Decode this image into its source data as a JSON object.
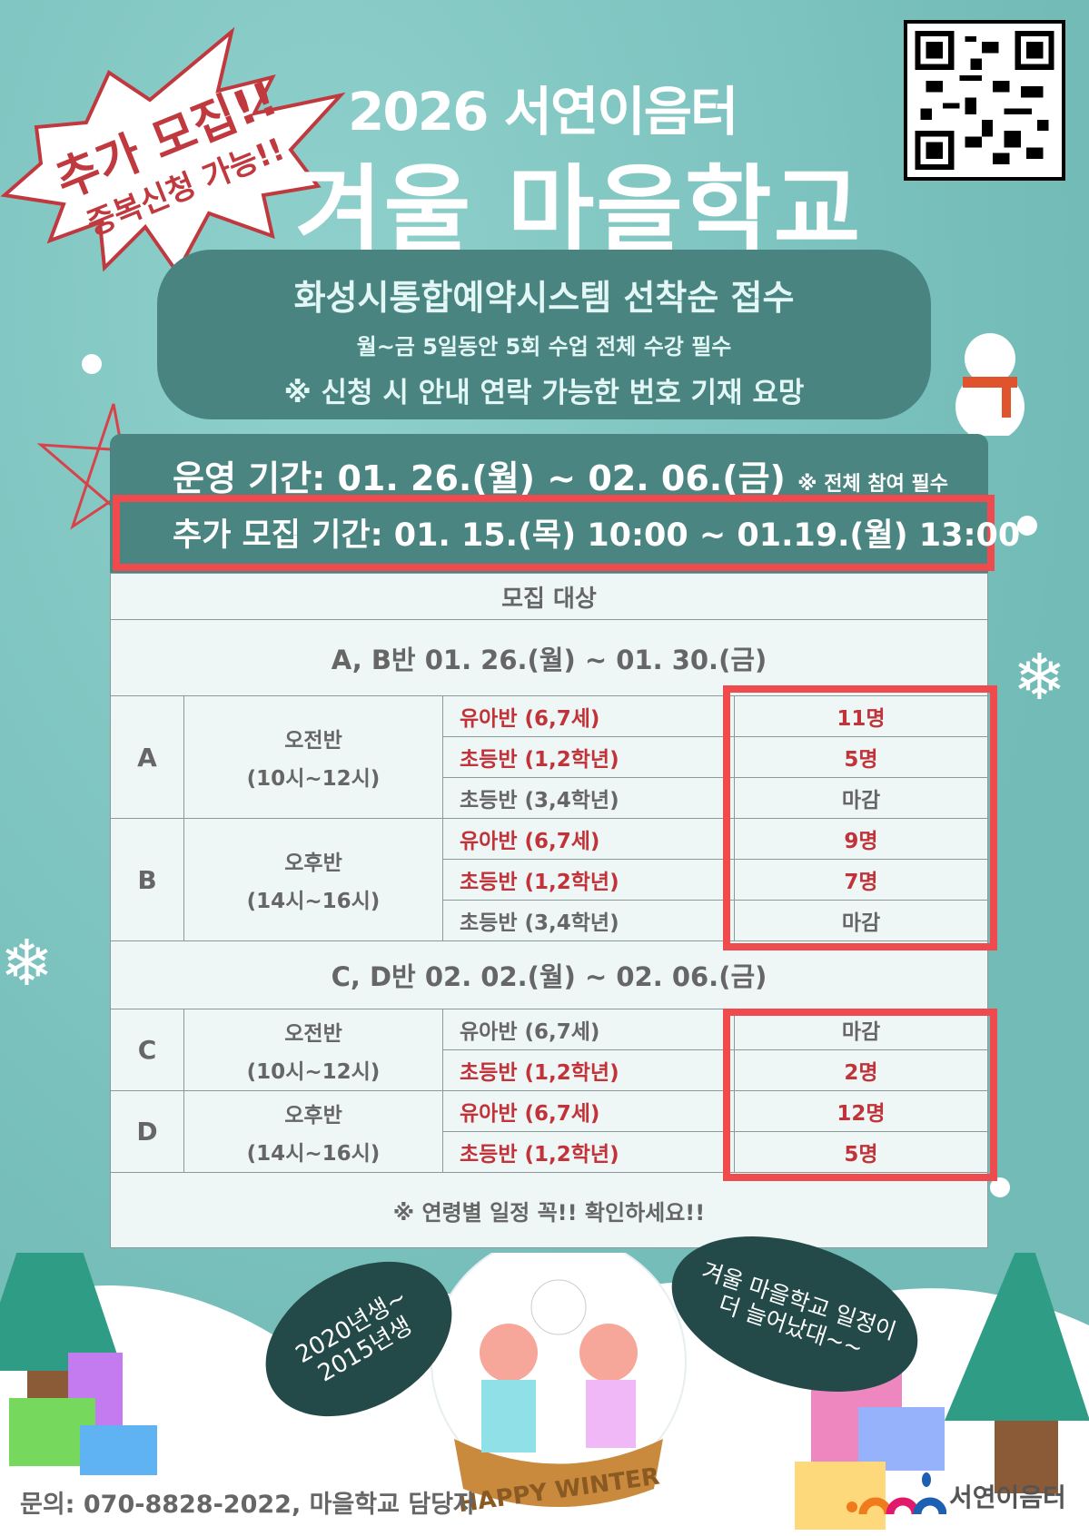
{
  "header": {
    "subtitle": "2026 서연이음터",
    "title": "겨울 마을학교"
  },
  "badge": {
    "line1": "추가 모집!!",
    "line2": "중복신청 가능!!"
  },
  "info": {
    "line1": "화성시통합예약시스템 선착순 접수",
    "line2": "월~금 5일동안 5회 수업 전체 수강 필수",
    "line3": "※ 신청 시 안내 연락 가능한 번호 기재 요망"
  },
  "period": {
    "operation": "운영 기간:  01. 26.(월) ~ 02. 06.(금)",
    "operation_note": "※ 전체 참여 필수",
    "extra": "추가 모집 기간:  01. 15.(목) 10:00 ~ 01.19.(월) 13:00"
  },
  "table": {
    "header": "모집 대상",
    "section1": "A, B반   01. 26.(월) ~ 01. 30.(금)",
    "section2": "C, D반   02. 02.(월) ~ 02. 06.(금)",
    "groups": [
      {
        "name": "A",
        "session": "오전반",
        "time": "(10시~12시)",
        "rows": [
          {
            "level": "유아반 (6,7세)",
            "seats": "11명"
          },
          {
            "level": "초등반 (1,2학년)",
            "seats": "5명"
          },
          {
            "level": "초등반 (3,4학년)",
            "seats": "마감"
          }
        ]
      },
      {
        "name": "B",
        "session": "오후반",
        "time": "(14시~16시)",
        "rows": [
          {
            "level": "유아반 (6,7세)",
            "seats": "9명"
          },
          {
            "level": "초등반 (1,2학년)",
            "seats": "7명"
          },
          {
            "level": "초등반 (3,4학년)",
            "seats": "마감"
          }
        ]
      },
      {
        "name": "C",
        "session": "오전반",
        "time": "(10시~12시)",
        "rows": [
          {
            "level": "유아반 (6,7세)",
            "seats": "마감"
          },
          {
            "level": "초등반 (1,2학년)",
            "seats": "2명"
          }
        ]
      },
      {
        "name": "D",
        "session": "오후반",
        "time": "(14시~16시)",
        "rows": [
          {
            "level": "유아반 (6,7세)",
            "seats": "12명"
          },
          {
            "level": "초등반 (1,2학년)",
            "seats": "5명"
          }
        ]
      }
    ],
    "footer": "※ 연령별 일정 꼭!! 확인하세요!!"
  },
  "bubbles": {
    "left": "2020년생~\n2015년생",
    "right": "겨울 마을학교 일정이\n더 늘어났대~~"
  },
  "globe_label": "HAPPY WINTER",
  "contact": "문의: 070-8828-2022, 마을학교 담당자",
  "logo": "서연이음터",
  "colors": {
    "background": "#7fc7c3",
    "panel": "#4a8480",
    "highlight": "#ef4b4f",
    "open_seats": "#c23239",
    "table_bg": "#eef7f6"
  }
}
